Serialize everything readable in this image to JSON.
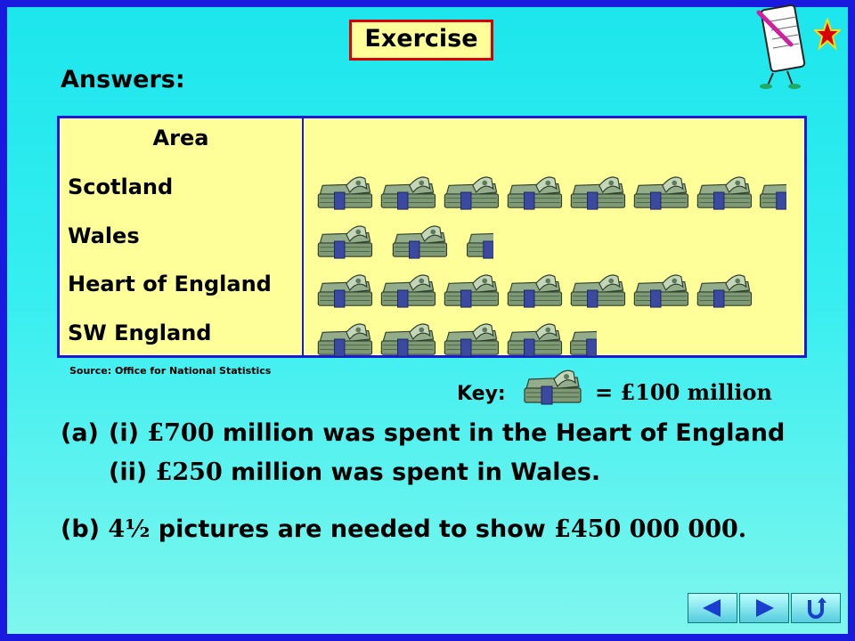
{
  "title": "Exercise",
  "answers_label": "Answers:",
  "source": "Source: Office for National Statistics",
  "chart_data": {
    "type": "pictogram",
    "column_header": "Area",
    "categories": [
      "Scotland",
      "Wales",
      "Heart of England",
      "SW England"
    ],
    "values": [
      750,
      250,
      700,
      450
    ],
    "unit_value": 100,
    "key": {
      "label": "Key:",
      "text": "= £100 million",
      "symbol_icon": "banknote-bundle-icon"
    }
  },
  "answers": {
    "a_prefix": "(a)",
    "a_i_prefix": "(i)",
    "a_i_amount": "£700",
    "a_i_rest": "million was spent in the Heart of England",
    "a_ii_prefix": "(ii)",
    "a_ii_amount": "£250",
    "a_ii_rest": "million was spent in Wales.",
    "b_prefix": "(b)",
    "b_count": "4½",
    "b_middle": "pictures are needed to show",
    "b_amount": "£450 000 000",
    "b_end": "."
  },
  "nav": {
    "icons": [
      "back-arrow-icon",
      "forward-arrow-icon",
      "return-icon"
    ],
    "colors": {
      "button": "#5cd",
      "arrow": "#1a3fd0"
    }
  }
}
